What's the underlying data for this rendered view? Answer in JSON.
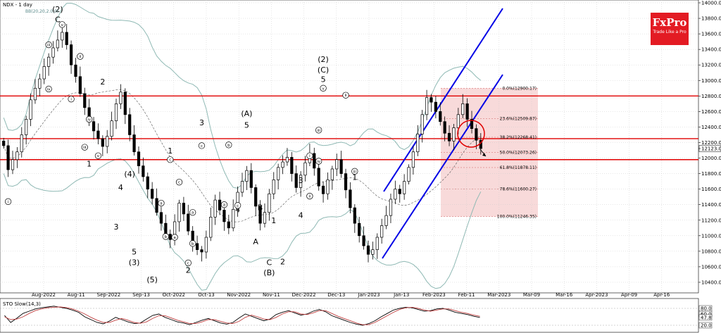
{
  "header": {
    "title": "NDX - 1 day",
    "indicator": "BB(20,20,2.0,0)"
  },
  "logo": {
    "brand": "FxPro",
    "tagline": "Trade Like a Pro"
  },
  "colors": {
    "candle": "#000000",
    "bollinger": "#8fb9b4",
    "level": "#e00000",
    "channel": "#0000e6",
    "fib_zone": "#f7d4d4",
    "sto_k": "#000000",
    "sto_d": "#c04040",
    "logo": "#e31b23"
  },
  "chart_data": [
    {
      "type": "candlestick",
      "title": "NDX - 1 day",
      "ylim": [
        10300,
        14000
      ],
      "y_ticks": [
        "14000.00",
        "13800.00",
        "13600.00",
        "13400.00",
        "13200.00",
        "13000.00",
        "12800.00",
        "12600.00",
        "12400.00",
        "12200.00",
        "12123.00",
        "12000.00",
        "11800.00",
        "11600.00",
        "11400.00",
        "11200.00",
        "11000.00",
        "10800.00",
        "10600.00",
        "10400.00"
      ],
      "x_ticks": [
        "Aug-2022",
        "Aug-11",
        "Sep-2022",
        "Sep-13",
        "Oct-2022",
        "Oct-13",
        "Nov-2022",
        "Nov-11",
        "Dec-2022",
        "Dec-13",
        "Jan-2023",
        "Jan-13",
        "Feb-2023",
        "Feb-11",
        "Mar-2023",
        "Mar-09",
        "Mar-16",
        "Apr-2023",
        "Apr-09",
        "Apr-16"
      ],
      "last_price": 12123,
      "series": [
        {
          "name": "close",
          "values": [
            12160,
            11850,
            11980,
            12080,
            12300,
            12500,
            12750,
            12900,
            13020,
            13180,
            13300,
            13420,
            13520,
            13620,
            13460,
            13200,
            13050,
            12830,
            12650,
            12470,
            12350,
            12250,
            12150,
            12280,
            12480,
            12700,
            12850,
            12560,
            12300,
            12080,
            11900,
            11760,
            11600,
            11480,
            11300,
            11160,
            11020,
            10950,
            11180,
            11420,
            11280,
            11060,
            10900,
            10820,
            10790,
            10980,
            11240,
            11460,
            11330,
            11180,
            11100,
            11340,
            11560,
            11700,
            11840,
            11620,
            11380,
            11160,
            11300,
            11540,
            11720,
            11880,
            11950,
            12010,
            11800,
            11620,
            11780,
            11940,
            12060,
            11870,
            11640,
            11540,
            11720,
            11860,
            11980,
            11800,
            11590,
            11360,
            11160,
            11000,
            10870,
            10760,
            10820,
            10980,
            11130,
            11260,
            11470,
            11600,
            11540,
            11700,
            11880,
            12080,
            12310,
            12560,
            12780,
            12720,
            12600,
            12470,
            12320,
            12220,
            12390,
            12560,
            12700,
            12500,
            12380,
            12230,
            12123
          ]
        }
      ],
      "levels": [
        12800,
        12250,
        11980
      ],
      "bollinger": {
        "name": "BB(20,20,2.0,0)"
      },
      "fibonacci": [
        {
          "ratio": "0.0%",
          "value": "12900.17"
        },
        {
          "ratio": "23.6%",
          "value": "12509.87"
        },
        {
          "ratio": "38.2%",
          "value": "12268.41"
        },
        {
          "ratio": "50.0%",
          "value": "12073.26"
        },
        {
          "ratio": "61.8%",
          "value": "11878.11"
        },
        {
          "ratio": "78.6%",
          "value": "11600.27"
        },
        {
          "ratio": "100.0%",
          "value": "11246.35"
        }
      ],
      "wave_labels": [
        {
          "text": "(2)",
          "i": 12,
          "v": 13880
        },
        {
          "text": "C",
          "i": 12,
          "v": 13750
        },
        {
          "text": "2",
          "i": 22,
          "v": 12950
        },
        {
          "text": "1",
          "i": 19,
          "v": 11890
        },
        {
          "text": "(4)",
          "i": 28,
          "v": 11760
        },
        {
          "text": "4",
          "i": 26,
          "v": 11590
        },
        {
          "text": "3",
          "i": 25,
          "v": 11080
        },
        {
          "text": "5",
          "i": 29,
          "v": 10760
        },
        {
          "text": "(3)",
          "i": 29,
          "v": 10620
        },
        {
          "text": "(5)",
          "i": 33,
          "v": 10400
        },
        {
          "text": "1",
          "i": 37,
          "v": 12060
        },
        {
          "text": "2",
          "i": 41,
          "v": 10520
        },
        {
          "text": "3",
          "i": 44,
          "v": 12420
        },
        {
          "text": "(A)",
          "i": 54,
          "v": 12540
        },
        {
          "text": "5",
          "i": 54,
          "v": 12390
        },
        {
          "text": "4",
          "i": 52,
          "v": 11300
        },
        {
          "text": "B",
          "i": 57,
          "v": 11330
        },
        {
          "text": "A",
          "i": 56,
          "v": 10890
        },
        {
          "text": "C",
          "i": 59,
          "v": 10620
        },
        {
          "text": "(B)",
          "i": 59,
          "v": 10490
        },
        {
          "text": "1",
          "i": 60,
          "v": 11160
        },
        {
          "text": "2",
          "i": 62,
          "v": 10630
        },
        {
          "text": "3",
          "i": 66,
          "v": 11680
        },
        {
          "text": "4",
          "i": 66,
          "v": 11230
        },
        {
          "text": "(2)",
          "i": 71,
          "v": 13240
        },
        {
          "text": "(C)",
          "i": 71,
          "v": 13100
        },
        {
          "text": "5",
          "i": 71,
          "v": 12980
        },
        {
          "text": "1",
          "i": 78,
          "v": 11720
        }
      ],
      "minor_labels": [
        {
          "text": "i",
          "i": 1,
          "v": 11440
        },
        {
          "text": "iii",
          "i": 10,
          "v": 13460
        },
        {
          "text": "iv",
          "i": 10,
          "v": 12890
        },
        {
          "text": "v",
          "i": 13,
          "v": 13720
        },
        {
          "text": "ii",
          "i": 17,
          "v": 13310
        },
        {
          "text": "i",
          "i": 15,
          "v": 12760
        },
        {
          "text": "iv",
          "i": 19,
          "v": 12500
        },
        {
          "text": "iii",
          "i": 18,
          "v": 12140
        },
        {
          "text": "v",
          "i": 21,
          "v": 12030
        },
        {
          "text": "c",
          "i": 37,
          "v": 11980
        },
        {
          "text": "a",
          "i": 35,
          "v": 11420
        },
        {
          "text": "b",
          "i": 36,
          "v": 10990
        },
        {
          "text": "a",
          "i": 38,
          "v": 10980
        },
        {
          "text": "c",
          "i": 39,
          "v": 11690
        },
        {
          "text": "a",
          "i": 42,
          "v": 11300
        },
        {
          "text": "b",
          "i": 42,
          "v": 10900
        },
        {
          "text": "c",
          "i": 41,
          "v": 10650
        },
        {
          "text": "c",
          "i": 44,
          "v": 12160
        },
        {
          "text": "b",
          "i": 50,
          "v": 12170
        },
        {
          "text": "a",
          "i": 49,
          "v": 11400
        },
        {
          "text": "c",
          "i": 52,
          "v": 11390
        },
        {
          "text": "i",
          "i": 68,
          "v": 12030
        },
        {
          "text": "ii",
          "i": 68,
          "v": 11510
        },
        {
          "text": "iii",
          "i": 70,
          "v": 12360
        },
        {
          "text": "iv",
          "i": 70,
          "v": 11960
        },
        {
          "text": "v",
          "i": 71,
          "v": 12900
        },
        {
          "text": "ii",
          "i": 76,
          "v": 12810
        },
        {
          "text": "iii",
          "i": 78,
          "v": 11830
        }
      ]
    },
    {
      "type": "line",
      "title": "STO Slow(14,3)",
      "ylim": [
        0,
        100
      ],
      "y_ticks": [
        "80.0",
        "60.0",
        "47.8",
        "20.0"
      ],
      "series": [
        {
          "name": "%K",
          "values": [
            55,
            30,
            45,
            62,
            70,
            78,
            82,
            85,
            88,
            84,
            80,
            74,
            66,
            50,
            40,
            30,
            25,
            35,
            48,
            40,
            32,
            26,
            28,
            42,
            55,
            60,
            48,
            40,
            32,
            28,
            22,
            30,
            38,
            44,
            36,
            28,
            24,
            30,
            46,
            60,
            52,
            44,
            36,
            42,
            58,
            66,
            72,
            64,
            56,
            60,
            70,
            76,
            68,
            54,
            46,
            38,
            30,
            24,
            20,
            26,
            36,
            50,
            62,
            74,
            80,
            84,
            82,
            76,
            70,
            72,
            78,
            80,
            74,
            66,
            62,
            58,
            52,
            47.8
          ]
        },
        {
          "name": "%D",
          "values": [
            50,
            40,
            42,
            50,
            62,
            72,
            78,
            82,
            84,
            85,
            83,
            78,
            70,
            60,
            48,
            38,
            30,
            30,
            38,
            44,
            38,
            30,
            27,
            32,
            44,
            54,
            54,
            46,
            38,
            32,
            26,
            26,
            32,
            40,
            40,
            34,
            28,
            26,
            34,
            48,
            56,
            50,
            42,
            40,
            48,
            60,
            68,
            68,
            60,
            58,
            64,
            72,
            72,
            62,
            52,
            44,
            36,
            28,
            22,
            22,
            30,
            42,
            54,
            66,
            76,
            82,
            84,
            80,
            74,
            70,
            74,
            78,
            78,
            72,
            66,
            62,
            56,
            52
          ]
        }
      ]
    }
  ]
}
